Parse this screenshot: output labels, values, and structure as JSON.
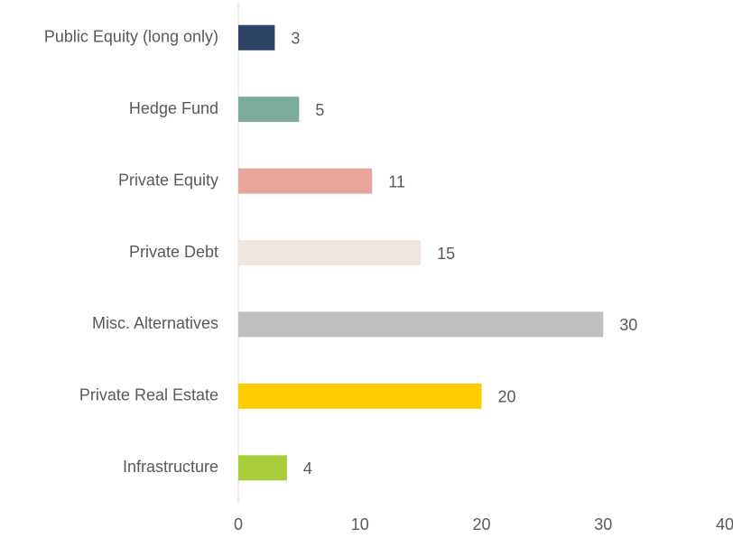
{
  "chart_data": {
    "type": "bar",
    "orientation": "horizontal",
    "categories": [
      "Public Equity (long only)",
      "Hedge Fund",
      "Private Equity",
      "Private Debt",
      "Misc. Alternatives",
      "Private Real Estate",
      "Infrastructure"
    ],
    "values": [
      3,
      5,
      11,
      15,
      30,
      20,
      4
    ],
    "colors": [
      "#2e4466",
      "#7aab9b",
      "#e8a59c",
      "#f0e6de",
      "#bfbfbf",
      "#ffcc00",
      "#a8cd3a"
    ],
    "xlim": [
      0,
      40
    ],
    "xticks": [
      0,
      10,
      20,
      30,
      40
    ],
    "grid": false
  }
}
